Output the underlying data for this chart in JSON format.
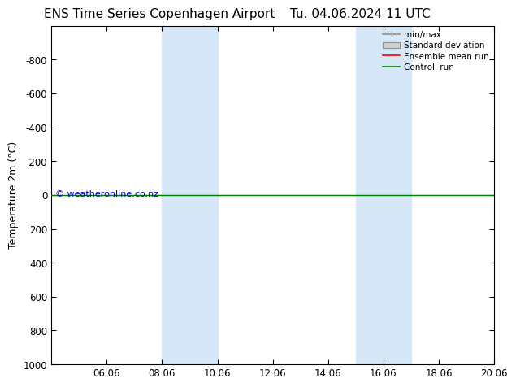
{
  "title_left": "ENS Time Series Copenhagen Airport",
  "title_right": "Tu. 04.06.2024 11 UTC",
  "ylabel": "Temperature 2m (°C)",
  "watermark": "© weatheronline.co.nz",
  "ylim": [
    -1000,
    1000
  ],
  "yticks": [
    -800,
    -600,
    -400,
    -200,
    0,
    200,
    400,
    600,
    800,
    1000
  ],
  "xlim": [
    4.0,
    20.0
  ],
  "xtick_positions": [
    6,
    8,
    10,
    12,
    14,
    16,
    18,
    20
  ],
  "xtick_labels": [
    "06.06",
    "08.06",
    "10.06",
    "12.06",
    "14.06",
    "16.06",
    "18.06",
    "20.06"
  ],
  "shaded_regions": [
    {
      "xstart": 8.0,
      "xend": 10.0
    },
    {
      "xstart": 15.0,
      "xend": 17.0
    }
  ],
  "shaded_color": "#d6e8f7",
  "horizontal_line_y": 0,
  "ensemble_mean_color": "#ff0000",
  "control_run_color": "#008000",
  "minmax_color": "#909090",
  "stddev_color": "#d0d0d0",
  "legend_entries": [
    "min/max",
    "Standard deviation",
    "Ensemble mean run",
    "Controll run"
  ],
  "background_color": "#ffffff",
  "plot_bg_color": "#ffffff",
  "title_fontsize": 11,
  "tick_fontsize": 8.5,
  "label_fontsize": 9,
  "watermark_color": "#0000cc",
  "watermark_fontsize": 8
}
